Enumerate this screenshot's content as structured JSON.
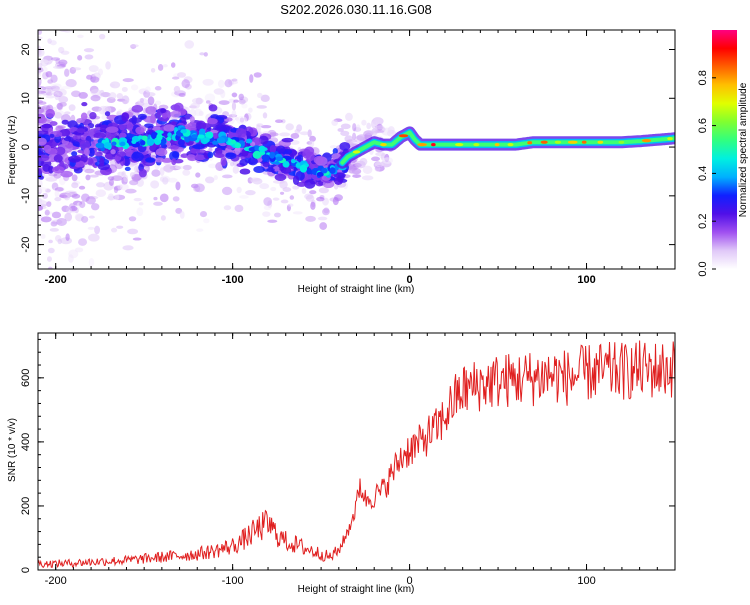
{
  "title": "S202.2026.030.11.16.G08",
  "chart_data": [
    {
      "type": "heatmap",
      "name": "spectrogram",
      "xlabel": "Height of straight line (km)",
      "ylabel": "Frequency (Hz)",
      "xlim": [
        -210,
        150
      ],
      "ylim": [
        -25,
        24
      ],
      "xticks": [
        -200,
        -100,
        0,
        100
      ],
      "yticks": [
        -20,
        -10,
        0,
        10,
        20
      ],
      "colorbar": {
        "label": "Normalized spectral amplitude",
        "range": [
          0.0,
          1.0
        ],
        "ticks": [
          0.0,
          0.2,
          0.4,
          0.6,
          0.8
        ],
        "colors": [
          "#ffffff",
          "#e0c8f8",
          "#a050f0",
          "#5010e8",
          "#1020ff",
          "#00b0ff",
          "#00f0e0",
          "#30ff80",
          "#80ff30",
          "#e0ff00",
          "#ffc000",
          "#ff6000",
          "#ff0000",
          "#ff0080"
        ]
      },
      "ridge": {
        "x": [
          -210,
          -190,
          -170,
          -150,
          -130,
          -120,
          -110,
          -100,
          -90,
          -80,
          -70,
          -60,
          -50,
          -45,
          -40,
          -35,
          -30,
          -25,
          -20,
          -15,
          -10,
          -5,
          0,
          3,
          6,
          10,
          20,
          30,
          40,
          50,
          60,
          70,
          80,
          90,
          100,
          110,
          120,
          130,
          140,
          150
        ],
        "y": [
          1,
          0,
          1,
          1,
          3,
          2,
          2,
          1,
          0,
          -2,
          -3,
          -4,
          -5,
          -5,
          -4,
          -2,
          -1,
          0,
          1,
          0.5,
          0.5,
          2,
          3,
          1.5,
          0.5,
          0.5,
          0.5,
          0.5,
          0.5,
          0.5,
          0.5,
          1,
          1,
          1,
          1,
          1,
          1,
          1.2,
          1.5,
          1.8
        ]
      }
    },
    {
      "type": "line",
      "name": "snr",
      "xlabel": "Height of straight line (km)",
      "ylabel": "SNR (10 * v/v)",
      "xlim": [
        -210,
        150
      ],
      "ylim": [
        0,
        740
      ],
      "xticks": [
        -200,
        -100,
        0,
        100
      ],
      "yticks": [
        0,
        200,
        400,
        600
      ],
      "color": "#e02020",
      "series": [
        {
          "name": "SNR",
          "x": [
            -210,
            -200,
            -190,
            -180,
            -170,
            -160,
            -150,
            -140,
            -130,
            -120,
            -110,
            -100,
            -95,
            -90,
            -85,
            -80,
            -75,
            -70,
            -65,
            -60,
            -55,
            -50,
            -45,
            -40,
            -35,
            -30,
            -28,
            -25,
            -20,
            -15,
            -10,
            -5,
            0,
            5,
            10,
            15,
            20,
            25,
            30,
            35,
            40,
            50,
            60,
            70,
            80,
            90,
            100,
            110,
            120,
            130,
            140,
            150
          ],
          "y": [
            20,
            20,
            22,
            25,
            28,
            30,
            35,
            40,
            45,
            50,
            60,
            75,
            90,
            110,
            130,
            145,
            110,
            90,
            80,
            70,
            60,
            50,
            40,
            60,
            120,
            200,
            270,
            220,
            230,
            250,
            300,
            350,
            380,
            390,
            420,
            440,
            480,
            530,
            560,
            570,
            580,
            590,
            595,
            600,
            610,
            600,
            615,
            620,
            620,
            625,
            625,
            630
          ]
        }
      ]
    }
  ]
}
